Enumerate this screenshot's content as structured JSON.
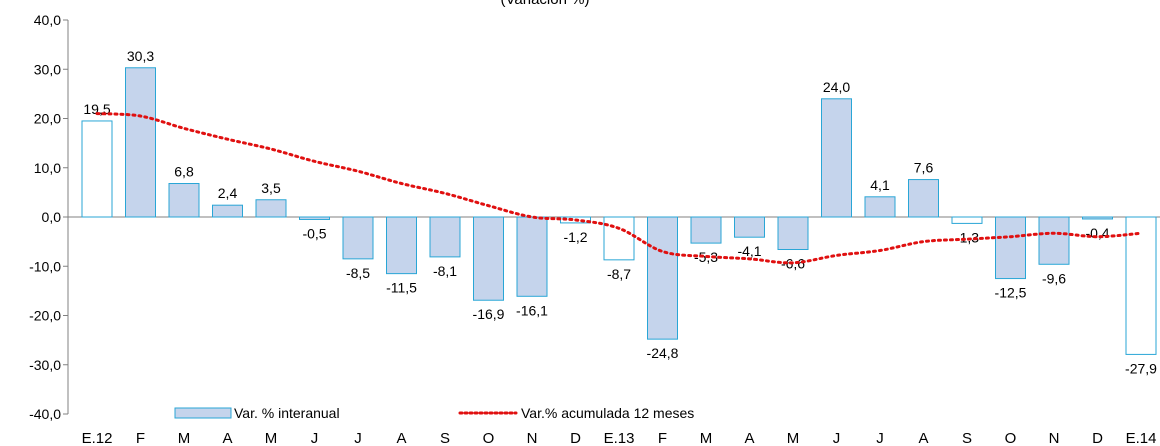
{
  "chart_data": {
    "type": "bar",
    "title": "",
    "subtitle": "(Variación %)",
    "categories": [
      "E.12",
      "F",
      "M",
      "A",
      "M",
      "J",
      "J",
      "A",
      "S",
      "O",
      "N",
      "D",
      "E.13",
      "F",
      "M",
      "A",
      "M",
      "J",
      "J",
      "A",
      "S",
      "O",
      "N",
      "D",
      "E.14"
    ],
    "series": [
      {
        "name": "Var. % interanual",
        "kind": "bar",
        "values": [
          19.5,
          30.3,
          6.8,
          2.4,
          3.5,
          -0.5,
          -8.5,
          -11.5,
          -8.1,
          -16.9,
          -16.1,
          -1.2,
          -8.7,
          -24.8,
          -5.3,
          -4.1,
          -6.6,
          24.0,
          4.1,
          7.6,
          -1.3,
          -12.5,
          -9.6,
          -0.4,
          -27.9
        ],
        "labels": [
          "19,5",
          "30,3",
          "6,8",
          "2,4",
          "3,5",
          "-0,5",
          "-8,5",
          "-11,5",
          "-8,1",
          "-16,9",
          "-16,1",
          "-1,2",
          "-8,7",
          "-24,8",
          "-5,3",
          "-4,1",
          "-6,6",
          "24,0",
          "4,1",
          "7,6",
          "-1,3",
          "-12,5",
          "-9,6",
          "-0,4",
          "-27,9"
        ],
        "hollow": [
          true,
          false,
          false,
          false,
          false,
          false,
          false,
          false,
          false,
          false,
          false,
          true,
          true,
          false,
          false,
          false,
          false,
          false,
          false,
          false,
          true,
          false,
          false,
          false,
          true
        ]
      },
      {
        "name": "Var.% acumulada 12 meses",
        "kind": "line",
        "style": "dotted",
        "values": [
          21.0,
          20.5,
          18.0,
          15.8,
          13.8,
          11.3,
          9.3,
          6.8,
          4.8,
          2.3,
          0.0,
          -0.6,
          -2.3,
          -7.0,
          -8.0,
          -8.5,
          -9.3,
          -7.8,
          -6.8,
          -5.0,
          -4.5,
          -4.0,
          -3.3,
          -4.0,
          -3.3
        ]
      }
    ],
    "ylim": [
      -40,
      40
    ],
    "yticks": [
      "-40,0",
      "-30,0",
      "-20,0",
      "-10,0",
      "0,0",
      "10,0",
      "20,0",
      "30,0",
      "40,0"
    ],
    "yticks_values": [
      -40,
      -30,
      -20,
      -10,
      0,
      10,
      20,
      30,
      40
    ],
    "legend": "bottom",
    "grid": false,
    "colors": {
      "bar_fill": "#c5d4ec",
      "bar_stroke": "#29a6d6",
      "hollow_fill": "#ffffff",
      "line": "#e01010",
      "axis": "#808080",
      "text": "#000000"
    }
  }
}
